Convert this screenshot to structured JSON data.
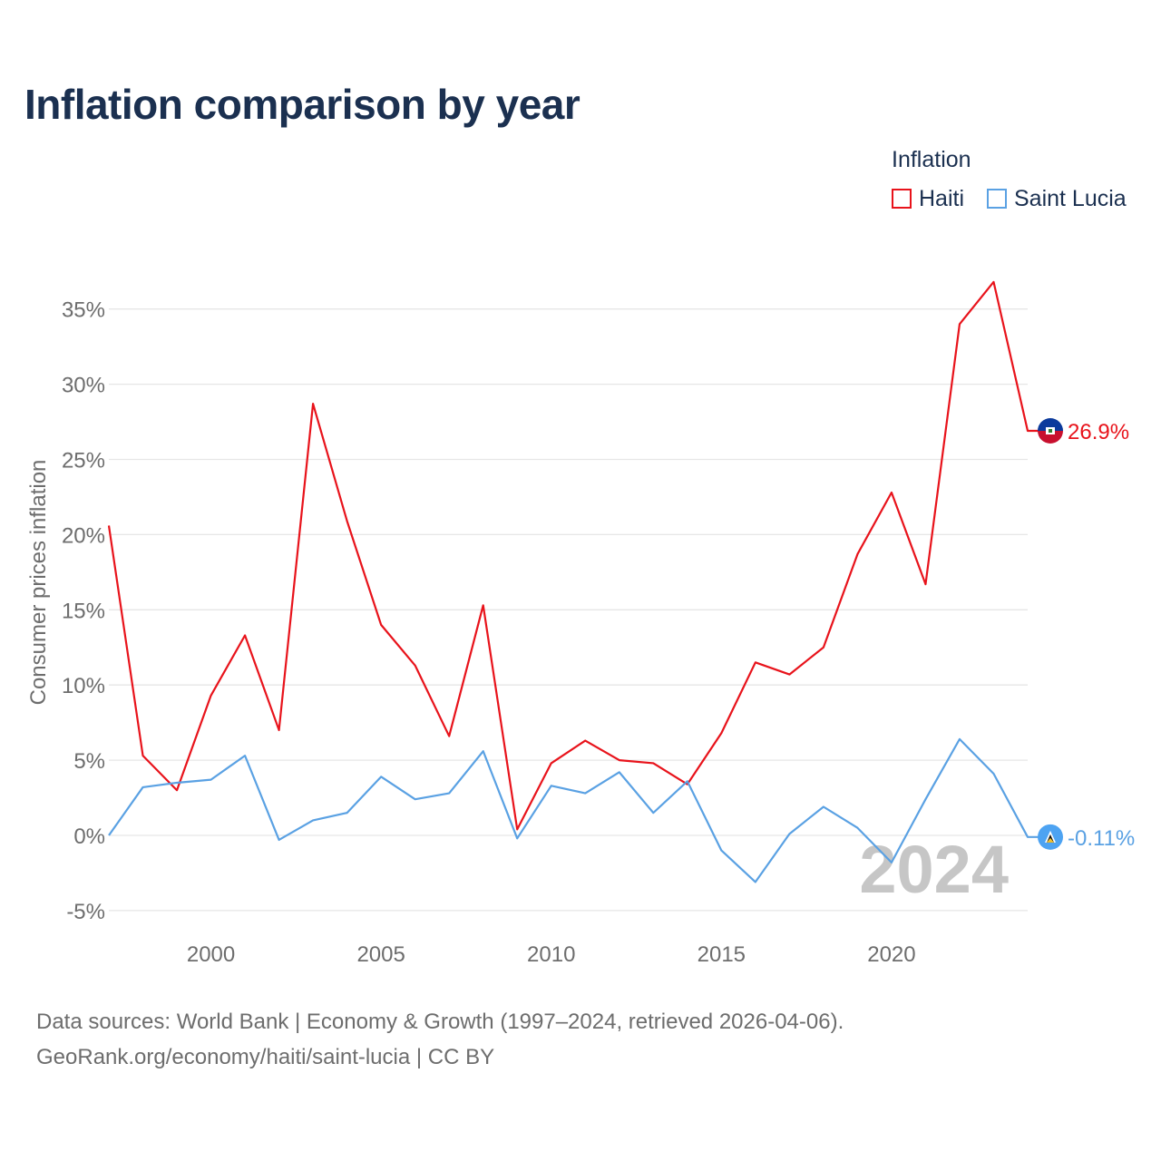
{
  "title": "Inflation comparison by year",
  "legend": {
    "title": "Inflation",
    "items": [
      {
        "label": "Haiti",
        "color": "#e8131b"
      },
      {
        "label": "Saint Lucia",
        "color": "#5aa1e3"
      }
    ]
  },
  "chart_data": {
    "type": "line",
    "title": "Inflation comparison by year",
    "xlabel": "",
    "ylabel": "Consumer prices inflation",
    "x": [
      1997,
      1998,
      1999,
      2000,
      2001,
      2002,
      2003,
      2004,
      2005,
      2006,
      2007,
      2008,
      2009,
      2010,
      2011,
      2012,
      2013,
      2014,
      2015,
      2016,
      2017,
      2018,
      2019,
      2020,
      2021,
      2022,
      2023,
      2024
    ],
    "xlim": [
      1997,
      2024
    ],
    "xticks": [
      2000,
      2005,
      2010,
      2015,
      2020
    ],
    "ylim": [
      -6,
      37
    ],
    "yticks": [
      -5,
      0,
      5,
      10,
      15,
      20,
      25,
      30,
      35
    ],
    "ytick_suffix": "%",
    "grid": true,
    "year_watermark": "2024",
    "series": [
      {
        "name": "Haiti",
        "color": "#e8131b",
        "values": [
          20.6,
          5.3,
          3.0,
          9.3,
          13.3,
          7.0,
          28.7,
          20.9,
          14.0,
          11.3,
          6.6,
          15.3,
          0.4,
          4.8,
          6.3,
          5.0,
          4.8,
          3.4,
          6.8,
          11.5,
          10.7,
          12.5,
          18.7,
          22.8,
          16.7,
          34.0,
          36.8,
          26.9
        ],
        "end_label": "26.9%"
      },
      {
        "name": "Saint Lucia",
        "color": "#5aa1e3",
        "values": [
          0.0,
          3.2,
          3.5,
          3.7,
          5.3,
          -0.3,
          1.0,
          1.5,
          3.9,
          2.4,
          2.8,
          5.6,
          -0.2,
          3.3,
          2.8,
          4.2,
          1.5,
          3.6,
          -1.0,
          -3.1,
          0.1,
          1.9,
          0.5,
          -1.8,
          2.4,
          6.4,
          4.1,
          -0.11
        ],
        "end_label": "-0.11%"
      }
    ]
  },
  "source": {
    "line1": "Data sources: World Bank | Economy & Growth (1997–2024, retrieved 2026-04-06).",
    "line2": "GeoRank.org/economy/haiti/saint-lucia | CC BY"
  }
}
